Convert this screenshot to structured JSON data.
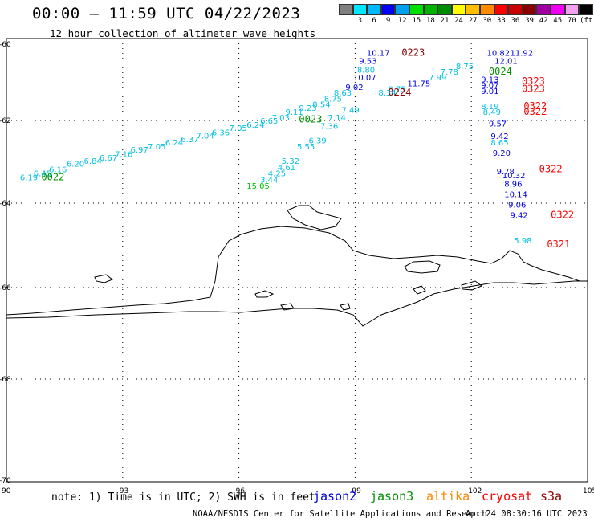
{
  "header": {
    "title": "00:00 — 11:59 UTC 04/22/2023",
    "subtitle": "12 hour collection of altimeter wave heights"
  },
  "color_scale": {
    "colors": [
      "#808080",
      "#00e8ff",
      "#00b8ff",
      "#0000f0",
      "#00a0f0",
      "#00e000",
      "#00b400",
      "#008c00",
      "#ffff00",
      "#ffbe00",
      "#ff8c00",
      "#ff0000",
      "#c80000",
      "#8c0000",
      "#a000a0",
      "#f000f0",
      "#f4a0f0",
      "#000000"
    ],
    "labels": [
      "3",
      "6",
      "9",
      "12",
      "15",
      "18",
      "21",
      "24",
      "27",
      "30",
      "33",
      "36",
      "39",
      "42",
      "45",
      "70"
    ],
    "unit": "(ft)"
  },
  "axes": {
    "lon_ticks": [
      "90",
      "93",
      "96",
      "99",
      "102",
      "105"
    ],
    "lat_ticks": [
      "-60",
      "-62",
      "-64",
      "-66",
      "-68",
      "-70"
    ],
    "lon_range": [
      90,
      105
    ],
    "lat_range": [
      -70,
      -60
    ]
  },
  "satellites": [
    {
      "name": "jason2",
      "color": "#0000e0"
    },
    {
      "name": "jason3",
      "color": "#009000"
    },
    {
      "name": "altika",
      "color": "#ff8800"
    },
    {
      "name": "cryosat",
      "color": "#ff0000"
    },
    {
      "name": "s3a",
      "color": "#8b0000"
    }
  ],
  "chart_data": {
    "type": "scatter",
    "x_label_units": "longitude",
    "y_label_units": "latitude",
    "xlim": [
      90,
      105
    ],
    "ylim": [
      -70,
      -60
    ],
    "swh_points": [
      {
        "lon": 90.35,
        "lat": -63.45,
        "v": "6.19",
        "c": "#00c0e0"
      },
      {
        "lon": 90.7,
        "lat": -63.35,
        "v": "6.45",
        "c": "#00c0e0"
      },
      {
        "lon": 91.1,
        "lat": -63.25,
        "v": "6.16",
        "c": "#00c0e0"
      },
      {
        "lon": 91.55,
        "lat": -63.12,
        "v": "6.20",
        "c": "#00c0e0"
      },
      {
        "lon": 92.0,
        "lat": -63.05,
        "v": "6.84",
        "c": "#00c0e0"
      },
      {
        "lon": 92.4,
        "lat": -62.97,
        "v": "6.67",
        "c": "#00c0e0"
      },
      {
        "lon": 92.8,
        "lat": -62.88,
        "v": "7.16",
        "c": "#00c0e0"
      },
      {
        "lon": 93.2,
        "lat": -62.78,
        "v": "6.97",
        "c": "#00c0e0"
      },
      {
        "lon": 93.65,
        "lat": -62.7,
        "v": "7.05",
        "c": "#00c0e0"
      },
      {
        "lon": 94.1,
        "lat": -62.6,
        "v": "6.24",
        "c": "#00c0e0"
      },
      {
        "lon": 94.5,
        "lat": -62.52,
        "v": "6.37",
        "c": "#00c0e0"
      },
      {
        "lon": 94.9,
        "lat": -62.44,
        "v": "7.04",
        "c": "#00c0e0"
      },
      {
        "lon": 95.3,
        "lat": -62.36,
        "v": "6.36",
        "c": "#00c0e0"
      },
      {
        "lon": 95.75,
        "lat": -62.25,
        "v": "7.05",
        "c": "#00c0e0"
      },
      {
        "lon": 96.2,
        "lat": -62.17,
        "v": "6.24",
        "c": "#00c0e0"
      },
      {
        "lon": 96.55,
        "lat": -62.08,
        "v": "6.65",
        "c": "#00c0e0"
      },
      {
        "lon": 96.85,
        "lat": -62.0,
        "v": "7.03",
        "c": "#00c0e0"
      },
      {
        "lon": 97.2,
        "lat": -61.85,
        "v": "9.11",
        "c": "#00c0e0"
      },
      {
        "lon": 97.55,
        "lat": -61.75,
        "v": "9.23",
        "c": "#00c0e0"
      },
      {
        "lon": 97.9,
        "lat": -61.65,
        "v": "8.54",
        "c": "#00c0e0"
      },
      {
        "lon": 98.2,
        "lat": -61.5,
        "v": "8.75",
        "c": "#00c0e0"
      },
      {
        "lon": 98.45,
        "lat": -61.35,
        "v": "8.63",
        "c": "#00c0e0"
      },
      {
        "lon": 98.75,
        "lat": -61.2,
        "v": "9.02",
        "c": "#0000e0"
      },
      {
        "lon": 98.95,
        "lat": -60.95,
        "v": "10.07",
        "c": "#0000e0"
      },
      {
        "lon": 99.05,
        "lat": -60.75,
        "v": "8.80",
        "c": "#00c0e0"
      },
      {
        "lon": 99.1,
        "lat": -60.52,
        "v": "9.53",
        "c": "#0000e0"
      },
      {
        "lon": 99.3,
        "lat": -60.3,
        "v": "10.17",
        "c": "#0000e0"
      },
      {
        "lon": 99.6,
        "lat": -61.35,
        "v": "8.34",
        "c": "#00c0e0"
      },
      {
        "lon": 99.85,
        "lat": -61.25,
        "v": "8.75",
        "c": "#00c0e0"
      },
      {
        "lon": 100.35,
        "lat": -61.1,
        "v": "11.75",
        "c": "#0000e0"
      },
      {
        "lon": 100.9,
        "lat": -60.95,
        "v": "7.99",
        "c": "#00c0e0"
      },
      {
        "lon": 101.2,
        "lat": -60.8,
        "v": "7.78",
        "c": "#00c0e0"
      },
      {
        "lon": 101.6,
        "lat": -60.65,
        "v": "8.75",
        "c": "#00c0e0"
      },
      {
        "lon": 98.65,
        "lat": -61.8,
        "v": "7.49",
        "c": "#00c0e0"
      },
      {
        "lon": 98.3,
        "lat": -62.0,
        "v": "7.14",
        "c": "#00c0e0"
      },
      {
        "lon": 98.1,
        "lat": -62.2,
        "v": "7.36",
        "c": "#00c0e0"
      },
      {
        "lon": 97.8,
        "lat": -62.55,
        "v": "6.39",
        "c": "#00c0e0"
      },
      {
        "lon": 97.5,
        "lat": -62.7,
        "v": "5.55",
        "c": "#00c0e0"
      },
      {
        "lon": 97.1,
        "lat": -63.05,
        "v": "5.32",
        "c": "#00c0e0"
      },
      {
        "lon": 97.0,
        "lat": -63.2,
        "v": "4.61",
        "c": "#00c0e0"
      },
      {
        "lon": 96.75,
        "lat": -63.35,
        "v": "4.25",
        "c": "#00c0e0"
      },
      {
        "lon": 96.55,
        "lat": -63.5,
        "v": "3.44",
        "c": "#00c0e0"
      },
      {
        "lon": 96.2,
        "lat": -63.65,
        "v": "15.05",
        "c": "#00c000"
      },
      {
        "lon": 102.4,
        "lat": -60.3,
        "v": "10.82",
        "c": "#0000e0"
      },
      {
        "lon": 103.0,
        "lat": -60.3,
        "v": "11.92",
        "c": "#0000e0"
      },
      {
        "lon": 102.6,
        "lat": -60.52,
        "v": "12.01",
        "c": "#0000e0"
      },
      {
        "lon": 102.25,
        "lat": -61.0,
        "v": "9.13",
        "c": "#0000e0"
      },
      {
        "lon": 102.25,
        "lat": -61.15,
        "v": "9.07",
        "c": "#0000e0"
      },
      {
        "lon": 102.25,
        "lat": -61.3,
        "v": "9.01",
        "c": "#0000e0"
      },
      {
        "lon": 102.25,
        "lat": -61.7,
        "v": "8.19",
        "c": "#00c0e0"
      },
      {
        "lon": 102.3,
        "lat": -61.85,
        "v": "8.49",
        "c": "#00c0e0"
      },
      {
        "lon": 102.45,
        "lat": -62.15,
        "v": "9.57",
        "c": "#0000e0"
      },
      {
        "lon": 102.5,
        "lat": -62.45,
        "v": "9.42",
        "c": "#0000e0"
      },
      {
        "lon": 102.5,
        "lat": -62.6,
        "v": "8.65",
        "c": "#00c0e0"
      },
      {
        "lon": 102.55,
        "lat": -62.85,
        "v": "9.20",
        "c": "#0000e0"
      },
      {
        "lon": 102.65,
        "lat": -63.3,
        "v": "9.78",
        "c": "#0000e0"
      },
      {
        "lon": 102.8,
        "lat": -63.4,
        "v": "10.32",
        "c": "#0000e0"
      },
      {
        "lon": 102.85,
        "lat": -63.6,
        "v": "8.96",
        "c": "#0000e0"
      },
      {
        "lon": 102.85,
        "lat": -63.85,
        "v": "10.14",
        "c": "#0000e0"
      },
      {
        "lon": 102.95,
        "lat": -64.1,
        "v": "9.06",
        "c": "#0000e0"
      },
      {
        "lon": 103.0,
        "lat": -64.35,
        "v": "9.42",
        "c": "#0000e0"
      },
      {
        "lon": 103.1,
        "lat": -64.95,
        "v": "5.98",
        "c": "#00c0e0"
      }
    ],
    "time_labels": [
      {
        "lon": 90.9,
        "lat": -63.45,
        "t": "0022",
        "c": "#009000"
      },
      {
        "lon": 97.55,
        "lat": -62.05,
        "t": "0023",
        "c": "#009000"
      },
      {
        "lon": 99.85,
        "lat": -61.35,
        "t": "0224",
        "c": "#8b0000"
      },
      {
        "lon": 100.2,
        "lat": -60.3,
        "t": "0223",
        "c": "#8b0000"
      },
      {
        "lon": 102.45,
        "lat": -60.8,
        "t": "0024",
        "c": "#009000"
      },
      {
        "lon": 103.3,
        "lat": -61.05,
        "t": "0323",
        "c": "#ff0000"
      },
      {
        "lon": 103.3,
        "lat": -61.25,
        "t": "0323",
        "c": "#ff0000"
      },
      {
        "lon": 103.35,
        "lat": -61.7,
        "t": "0322",
        "c": "#ff0000"
      },
      {
        "lon": 103.35,
        "lat": -61.85,
        "t": "0322",
        "c": "#ff0000"
      },
      {
        "lon": 103.75,
        "lat": -63.25,
        "t": "0322",
        "c": "#ff0000"
      },
      {
        "lon": 104.05,
        "lat": -64.35,
        "t": "0322",
        "c": "#ff0000"
      },
      {
        "lon": 103.95,
        "lat": -65.05,
        "t": "0321",
        "c": "#ff0000"
      }
    ]
  },
  "note": "note: 1) Time is in UTC; 2) SWH is in feet",
  "footer_left": "NOAA/NESDIS Center for Satellite Applications and Research",
  "footer_right": "Apr 24 08:30:16 UTC 2023"
}
